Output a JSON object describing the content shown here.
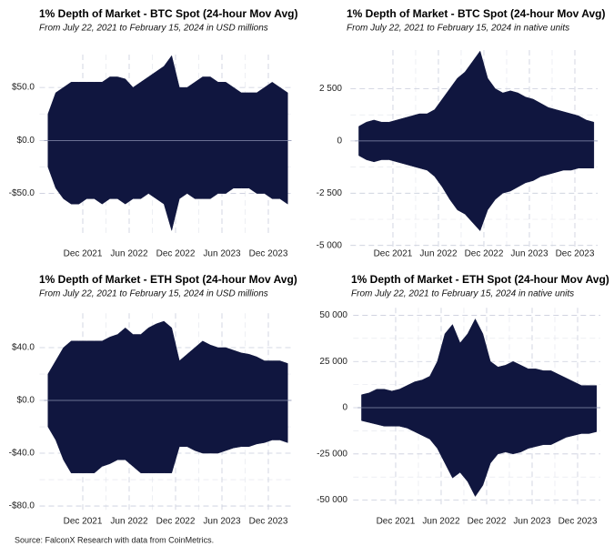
{
  "chart_data": [
    {
      "type": "area",
      "title": "1% Depth of Market - BTC Spot (24-hour Mov Avg)",
      "subtitle": "From July 22, 2021 to February 15, 2024 in USD millions",
      "x": [
        "2021-07",
        "2021-08",
        "2021-09",
        "2021-10",
        "2021-11",
        "2021-12",
        "2022-01",
        "2022-02",
        "2022-03",
        "2022-04",
        "2022-05",
        "2022-06",
        "2022-07",
        "2022-08",
        "2022-09",
        "2022-10",
        "2022-11",
        "2022-12",
        "2023-01",
        "2023-02",
        "2023-03",
        "2023-04",
        "2023-05",
        "2023-06",
        "2023-07",
        "2023-08",
        "2023-09",
        "2023-10",
        "2023-11",
        "2023-12",
        "2024-01",
        "2024-02"
      ],
      "series": [
        {
          "color": "#10163f",
          "values": [
            25,
            45,
            50,
            55,
            55,
            55,
            55,
            55,
            60,
            60,
            58,
            50,
            55,
            60,
            65,
            70,
            80,
            50,
            50,
            55,
            60,
            60,
            55,
            55,
            50,
            45,
            45,
            45,
            50,
            55,
            50,
            45
          ]
        },
        {
          "color": "#10163f",
          "values": [
            -25,
            -45,
            -55,
            -60,
            -60,
            -55,
            -55,
            -60,
            -55,
            -55,
            -60,
            -55,
            -55,
            -50,
            -55,
            -60,
            -85,
            -55,
            -50,
            -55,
            -55,
            -55,
            -50,
            -50,
            -45,
            -45,
            -45,
            -50,
            -50,
            -55,
            -55,
            -60
          ]
        }
      ],
      "xlim": [
        "2021-07",
        "2024-02"
      ],
      "xticks": [
        {
          "value": "2021-12",
          "label": "Dec 2021"
        },
        {
          "value": "2022-06",
          "label": "Jun 2022"
        },
        {
          "value": "2022-12",
          "label": "Dec 2022"
        },
        {
          "value": "2023-06",
          "label": "Jun 2023"
        },
        {
          "value": "2023-12",
          "label": "Dec 2023"
        }
      ],
      "ylim": [
        -89,
        81
      ],
      "yticks": [
        {
          "value": -50,
          "label": "-$50.0"
        },
        {
          "value": 0,
          "label": "$0.0"
        },
        {
          "value": 50,
          "label": "$50.0"
        }
      ],
      "grid": true
    },
    {
      "type": "area",
      "title": "1% Depth of Market - BTC Spot (24-hour Mov Avg)",
      "subtitle": "From July 22, 2021 to February 15, 2024 in native units",
      "x": [
        "2021-07",
        "2021-08",
        "2021-09",
        "2021-10",
        "2021-11",
        "2021-12",
        "2022-01",
        "2022-02",
        "2022-03",
        "2022-04",
        "2022-05",
        "2022-06",
        "2022-07",
        "2022-08",
        "2022-09",
        "2022-10",
        "2022-11",
        "2022-12",
        "2023-01",
        "2023-02",
        "2023-03",
        "2023-04",
        "2023-05",
        "2023-06",
        "2023-07",
        "2023-08",
        "2023-09",
        "2023-10",
        "2023-11",
        "2023-12",
        "2024-01",
        "2024-02"
      ],
      "series": [
        {
          "color": "#10163f",
          "values": [
            700,
            900,
            1000,
            900,
            900,
            1000,
            1100,
            1200,
            1300,
            1300,
            1500,
            2000,
            2500,
            3000,
            3300,
            3800,
            4300,
            3000,
            2500,
            2300,
            2400,
            2300,
            2100,
            2000,
            1800,
            1600,
            1500,
            1400,
            1300,
            1200,
            1000,
            900
          ]
        },
        {
          "color": "#10163f",
          "values": [
            -700,
            -900,
            -1000,
            -900,
            -900,
            -1000,
            -1100,
            -1200,
            -1300,
            -1400,
            -1700,
            -2200,
            -2800,
            -3300,
            -3500,
            -3900,
            -4300,
            -3300,
            -2800,
            -2500,
            -2400,
            -2200,
            -2000,
            -1900,
            -1700,
            -1600,
            -1500,
            -1400,
            -1400,
            -1300,
            -1300,
            -1300
          ]
        }
      ],
      "xlim": [
        "2021-07",
        "2024-02"
      ],
      "xticks": [
        {
          "value": "2021-12",
          "label": "Dec 2021"
        },
        {
          "value": "2022-06",
          "label": "Jun 2022"
        },
        {
          "value": "2022-12",
          "label": "Dec 2022"
        },
        {
          "value": "2023-06",
          "label": "Jun 2023"
        },
        {
          "value": "2023-12",
          "label": "Dec 2023"
        }
      ],
      "ylim": [
        -5100,
        4350
      ],
      "yticks": [
        {
          "value": -5000,
          "label": "-5 000"
        },
        {
          "value": -2500,
          "label": "-2 500"
        },
        0,
        {
          "value": 2500,
          "label": "2 500"
        }
      ],
      "grid": true
    },
    {
      "type": "area",
      "title": "1% Depth of Market - ETH Spot (24-hour Mov Avg)",
      "subtitle": "From July 22, 2021 to February 15, 2024 in USD millions",
      "x": [
        "2021-07",
        "2021-08",
        "2021-09",
        "2021-10",
        "2021-11",
        "2021-12",
        "2022-01",
        "2022-02",
        "2022-03",
        "2022-04",
        "2022-05",
        "2022-06",
        "2022-07",
        "2022-08",
        "2022-09",
        "2022-10",
        "2022-11",
        "2022-12",
        "2023-01",
        "2023-02",
        "2023-03",
        "2023-04",
        "2023-05",
        "2023-06",
        "2023-07",
        "2023-08",
        "2023-09",
        "2023-10",
        "2023-11",
        "2023-12",
        "2024-01",
        "2024-02"
      ],
      "series": [
        {
          "color": "#10163f",
          "values": [
            20,
            30,
            40,
            45,
            45,
            45,
            45,
            45,
            48,
            50,
            55,
            50,
            50,
            55,
            58,
            60,
            55,
            30,
            35,
            40,
            45,
            42,
            40,
            40,
            38,
            36,
            35,
            33,
            30,
            30,
            30,
            28
          ]
        },
        {
          "color": "#10163f",
          "values": [
            -20,
            -30,
            -45,
            -55,
            -55,
            -55,
            -55,
            -50,
            -48,
            -45,
            -45,
            -50,
            -55,
            -55,
            -55,
            -55,
            -55,
            -35,
            -35,
            -38,
            -40,
            -40,
            -40,
            -38,
            -36,
            -35,
            -35,
            -33,
            -32,
            -30,
            -30,
            -32
          ]
        }
      ],
      "xlim": [
        "2021-07",
        "2024-02"
      ],
      "xticks": [
        {
          "value": "2021-12",
          "label": "Dec 2021"
        },
        {
          "value": "2022-06",
          "label": "Jun 2022"
        },
        {
          "value": "2022-12",
          "label": "Dec 2022"
        },
        {
          "value": "2023-06",
          "label": "Jun 2023"
        },
        {
          "value": "2023-12",
          "label": "Dec 2023"
        }
      ],
      "ylim": [
        -83,
        66
      ],
      "yticks": [
        {
          "value": -80,
          "label": "-$80.0"
        },
        {
          "value": -40,
          "label": "-$40.0"
        },
        {
          "value": 0,
          "label": "$0.0"
        },
        {
          "value": 40,
          "label": "$40.0"
        }
      ],
      "grid": true
    },
    {
      "type": "area",
      "title": "1% Depth of Market - ETH Spot (24-hour Mov Avg)",
      "subtitle": "From July 22, 2021 to February 15, 2024 in native units",
      "x": [
        "2021-07",
        "2021-08",
        "2021-09",
        "2021-10",
        "2021-11",
        "2021-12",
        "2022-01",
        "2022-02",
        "2022-03",
        "2022-04",
        "2022-05",
        "2022-06",
        "2022-07",
        "2022-08",
        "2022-09",
        "2022-10",
        "2022-11",
        "2022-12",
        "2023-01",
        "2023-02",
        "2023-03",
        "2023-04",
        "2023-05",
        "2023-06",
        "2023-07",
        "2023-08",
        "2023-09",
        "2023-10",
        "2023-11",
        "2023-12",
        "2024-01",
        "2024-02"
      ],
      "series": [
        {
          "color": "#10163f",
          "values": [
            7000,
            8000,
            10000,
            10000,
            9000,
            10000,
            12000,
            14000,
            15000,
            17000,
            25000,
            40000,
            45000,
            35000,
            40000,
            48000,
            40000,
            25000,
            22000,
            23000,
            25000,
            23000,
            21000,
            21000,
            20000,
            20000,
            18000,
            16000,
            14000,
            12000,
            12000,
            12000
          ]
        },
        {
          "color": "#10163f",
          "values": [
            -7000,
            -8000,
            -9000,
            -10000,
            -10000,
            -10000,
            -11000,
            -13000,
            -15000,
            -17000,
            -22000,
            -30000,
            -38000,
            -35000,
            -40000,
            -48000,
            -42000,
            -30000,
            -25000,
            -24000,
            -25000,
            -24000,
            -22000,
            -21000,
            -20000,
            -20000,
            -18000,
            -16000,
            -15000,
            -14000,
            -14000,
            -13000
          ]
        }
      ],
      "xlim": [
        "2021-07",
        "2024-02"
      ],
      "xticks": [
        {
          "value": "2021-12",
          "label": "Dec 2021"
        },
        {
          "value": "2022-06",
          "label": "Jun 2022"
        },
        {
          "value": "2022-12",
          "label": "Dec 2022"
        },
        {
          "value": "2023-06",
          "label": "Jun 2023"
        },
        {
          "value": "2023-12",
          "label": "Dec 2023"
        }
      ],
      "ylim": [
        -53000,
        54000
      ],
      "yticks": [
        {
          "value": -50000,
          "label": "-50 000"
        },
        {
          "value": -25000,
          "label": "-25 000"
        },
        0,
        {
          "value": 25000,
          "label": "25 000"
        },
        {
          "value": 50000,
          "label": "50 000"
        }
      ],
      "grid": true
    }
  ],
  "source": "Source: FalconX Research with data from CoinMetrics."
}
